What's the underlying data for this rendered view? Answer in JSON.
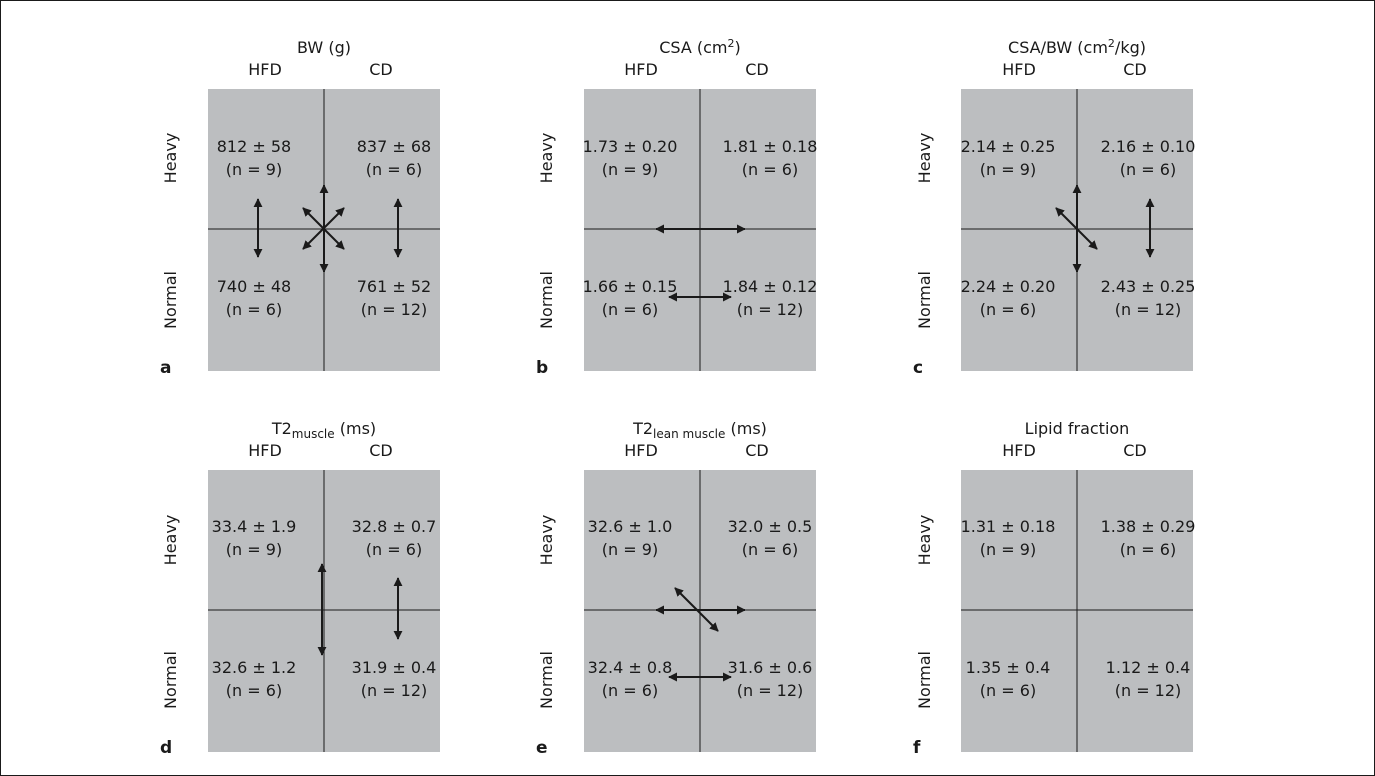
{
  "panels": [
    {
      "letter": "a",
      "title": "BW (g)",
      "title_main": "BW (g)",
      "title_sub": "",
      "title_tail": "",
      "col_labels": [
        "HFD",
        "CD"
      ],
      "row_labels": [
        "Heavy",
        "Normal"
      ],
      "cells": [
        {
          "value": "812 ± 58",
          "n": "(n = 9)"
        },
        {
          "value": "837 ± 68",
          "n": "(n = 6)"
        },
        {
          "value": "740 ± 48",
          "n": "(n = 6)"
        },
        {
          "value": "761 ± 52",
          "n": "(n = 12)"
        }
      ],
      "comparisons": [
        "heavy-vs-normal in HFD",
        "HFD-heavy vs CD-normal",
        "CD-heavy vs HFD-normal",
        "heavy vs normal (overall)",
        "heavy-vs-normal in CD"
      ]
    },
    {
      "letter": "b",
      "title": "CSA (cm2)",
      "title_main": "CSA (cm",
      "title_sub": "",
      "title_sup": "2",
      "title_tail": ")",
      "col_labels": [
        "HFD",
        "CD"
      ],
      "row_labels": [
        "Heavy",
        "Normal"
      ],
      "cells": [
        {
          "value": "1.73 ± 0.20",
          "n": "(n = 9)"
        },
        {
          "value": "1.81 ± 0.18",
          "n": "(n = 6)"
        },
        {
          "value": "1.66 ± 0.15",
          "n": "(n = 6)"
        },
        {
          "value": "1.84 ± 0.12",
          "n": "(n = 12)"
        }
      ],
      "comparisons": [
        "HFD vs CD (overall)",
        "HFD vs CD in Normal"
      ]
    },
    {
      "letter": "c",
      "title": "CSA/BW (cm2/kg)",
      "title_main": "CSA/BW (cm",
      "title_sup": "2",
      "title_tail": "/kg)",
      "col_labels": [
        "HFD",
        "CD"
      ],
      "row_labels": [
        "Heavy",
        "Normal"
      ],
      "cells": [
        {
          "value": "2.14 ± 0.25",
          "n": "(n = 9)"
        },
        {
          "value": "2.16 ± 0.10",
          "n": "(n = 6)"
        },
        {
          "value": "2.24 ± 0.20",
          "n": "(n = 6)"
        },
        {
          "value": "2.43 ± 0.25",
          "n": "(n = 12)"
        }
      ],
      "comparisons": [
        "heavy vs normal (overall)",
        "HFD-heavy vs CD-normal",
        "heavy-vs-normal in CD"
      ]
    },
    {
      "letter": "d",
      "title": "T2muscle (ms)",
      "title_main": "T2",
      "title_sub": "muscle",
      "title_tail": " (ms)",
      "col_labels": [
        "HFD",
        "CD"
      ],
      "row_labels": [
        "Heavy",
        "Normal"
      ],
      "cells": [
        {
          "value": "33.4 ± 1.9",
          "n": "(n = 9)"
        },
        {
          "value": "32.8 ± 0.7",
          "n": "(n = 6)"
        },
        {
          "value": "32.6 ± 1.2",
          "n": "(n = 6)"
        },
        {
          "value": "31.9 ± 0.4",
          "n": "(n = 12)"
        }
      ],
      "comparisons": [
        "heavy vs normal (overall)",
        "heavy-vs-normal in CD"
      ]
    },
    {
      "letter": "e",
      "title": "T2lean muscle (ms)",
      "title_main": "T2",
      "title_sub": "lean muscle",
      "title_tail": " (ms)",
      "col_labels": [
        "HFD",
        "CD"
      ],
      "row_labels": [
        "Heavy",
        "Normal"
      ],
      "cells": [
        {
          "value": "32.6 ± 1.0",
          "n": "(n = 9)"
        },
        {
          "value": "32.0 ± 0.5",
          "n": "(n = 6)"
        },
        {
          "value": "32.4 ± 0.8",
          "n": "(n = 6)"
        },
        {
          "value": "31.6 ± 0.6",
          "n": "(n = 12)"
        }
      ],
      "comparisons": [
        "HFD vs CD (overall)",
        "HFD-heavy vs CD-normal",
        "HFD vs CD in Normal"
      ]
    },
    {
      "letter": "f",
      "title": "Lipid fraction",
      "title_main": "Lipid fraction",
      "title_sub": "",
      "title_tail": "",
      "col_labels": [
        "HFD",
        "CD"
      ],
      "row_labels": [
        "Heavy",
        "Normal"
      ],
      "cells": [
        {
          "value": "1.31 ± 0.18",
          "n": "(n = 9)"
        },
        {
          "value": "1.38 ± 0.29",
          "n": "(n = 6)"
        },
        {
          "value": "1.35 ± 0.4",
          "n": "(n = 6)"
        },
        {
          "value": "1.12 ± 0.4",
          "n": "(n = 12)"
        }
      ],
      "comparisons": []
    }
  ]
}
